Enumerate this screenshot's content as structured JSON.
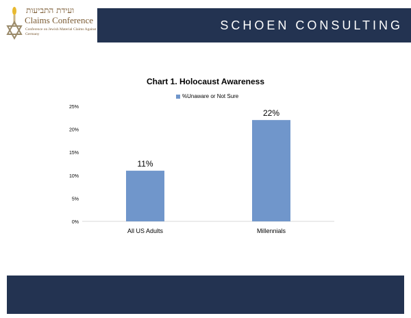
{
  "header": {
    "consultancy": "SCHOEN CONSULTING",
    "brand_color": "#233351"
  },
  "logo": {
    "hebrew": "ועידת התביעות",
    "name": "Claims Conference",
    "subtitle": "Conference on Jewish Material Claims Against Germany",
    "accent_color": "#7a5a32"
  },
  "chart_data": {
    "type": "bar",
    "title": "Chart 1. Holocaust Awareness",
    "categories": [
      "All US Adults",
      "Millennials"
    ],
    "series": [
      {
        "name": "%Unaware or Not Sure",
        "values": [
          11,
          22
        ],
        "color": "#7096cb"
      }
    ],
    "data_labels": [
      "11%",
      "22%"
    ],
    "y_ticks": [
      "0%",
      "5%",
      "10%",
      "15%",
      "20%",
      "25%"
    ],
    "ylim": [
      0,
      25
    ],
    "legend_position": "top",
    "grid": false
  },
  "footer": {
    "color": "#233351"
  }
}
